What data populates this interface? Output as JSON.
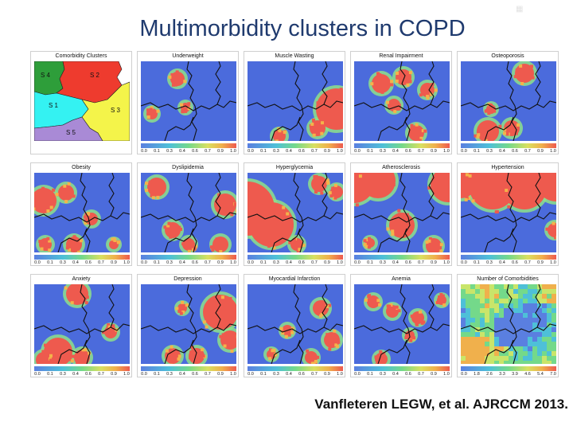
{
  "slide": {
    "title": "Multimorbidity clusters in COPD",
    "citation": "Vanfleteren LEGW, et al. AJRCCM 2013."
  },
  "colors": {
    "low": "#4b6bdc",
    "high": "#ee5a4e",
    "mid": "#8ee08a",
    "border": "#111111"
  },
  "chart_data": [
    {
      "type": "heatmap",
      "title": "Comorbidity Clusters",
      "variant": "clusters",
      "legend": [],
      "clusters": [
        {
          "label": "S 4",
          "color": "#2e9e3a"
        },
        {
          "label": "S 2",
          "color": "#ee3b2e"
        },
        {
          "label": "S 1",
          "color": "#34f2f2"
        },
        {
          "label": "S 3",
          "color": "#f4f44a"
        },
        {
          "label": "S 5",
          "color": "#a98ad6"
        }
      ]
    },
    {
      "type": "heatmap",
      "title": "Underweight",
      "variant": "blobs",
      "pattern": 0,
      "legend": [
        "0.0",
        "0.1",
        "0.3",
        "0.4",
        "0.6",
        "0.7",
        "0.9",
        "1.0"
      ],
      "range": [
        0,
        1
      ]
    },
    {
      "type": "heatmap",
      "title": "Muscle Wasting",
      "variant": "blobs",
      "pattern": 1,
      "legend": [
        "0.0",
        "0.1",
        "0.3",
        "0.4",
        "0.6",
        "0.7",
        "0.9",
        "1.0"
      ],
      "range": [
        0,
        1
      ]
    },
    {
      "type": "heatmap",
      "title": "Renal Impairment",
      "variant": "blobs",
      "pattern": 2,
      "legend": [
        "0.0",
        "0.1",
        "0.3",
        "0.4",
        "0.6",
        "0.7",
        "0.9",
        "1.0"
      ],
      "range": [
        0,
        1
      ]
    },
    {
      "type": "heatmap",
      "title": "Osteoporosis",
      "variant": "blobs",
      "pattern": 3,
      "legend": [
        "0.0",
        "0.1",
        "0.3",
        "0.4",
        "0.6",
        "0.7",
        "0.9",
        "1.0"
      ],
      "range": [
        0,
        1
      ]
    },
    {
      "type": "heatmap",
      "title": "Obesity",
      "variant": "blobs",
      "pattern": 4,
      "legend": [
        "0.0",
        "0.1",
        "0.3",
        "0.4",
        "0.6",
        "0.7",
        "0.9",
        "1.0"
      ],
      "range": [
        0,
        1
      ]
    },
    {
      "type": "heatmap",
      "title": "Dyslipidemia",
      "variant": "blobs",
      "pattern": 5,
      "legend": [
        "0.0",
        "0.1",
        "0.3",
        "0.4",
        "0.6",
        "0.7",
        "0.9",
        "1.0"
      ],
      "range": [
        0,
        1
      ]
    },
    {
      "type": "heatmap",
      "title": "Hyperglycemia",
      "variant": "blobs",
      "pattern": 6,
      "legend": [
        "0.0",
        "0.1",
        "0.3",
        "0.4",
        "0.6",
        "0.7",
        "0.9",
        "1.0"
      ],
      "range": [
        0,
        1
      ]
    },
    {
      "type": "heatmap",
      "title": "Atherosclerosis",
      "variant": "blobs",
      "pattern": 7,
      "legend": [
        "0.0",
        "0.1",
        "0.3",
        "0.4",
        "0.6",
        "0.7",
        "0.9",
        "1.0"
      ],
      "range": [
        0,
        1
      ]
    },
    {
      "type": "heatmap",
      "title": "Hypertension",
      "variant": "blobs",
      "pattern": 8,
      "legend": [
        "0.0",
        "0.1",
        "0.3",
        "0.4",
        "0.6",
        "0.7",
        "0.9",
        "1.0"
      ],
      "range": [
        0,
        1
      ]
    },
    {
      "type": "heatmap",
      "title": "Anxiety",
      "variant": "blobs",
      "pattern": 9,
      "legend": [
        "0.0",
        "0.1",
        "0.3",
        "0.4",
        "0.6",
        "0.7",
        "0.9",
        "1.0"
      ],
      "range": [
        0,
        1
      ]
    },
    {
      "type": "heatmap",
      "title": "Depression",
      "variant": "blobs",
      "pattern": 10,
      "legend": [
        "0.0",
        "0.1",
        "0.3",
        "0.4",
        "0.6",
        "0.7",
        "0.9",
        "1.0"
      ],
      "range": [
        0,
        1
      ]
    },
    {
      "type": "heatmap",
      "title": "Myocardial Infarction",
      "variant": "blobs",
      "pattern": 11,
      "legend": [
        "0.0",
        "0.1",
        "0.3",
        "0.4",
        "0.6",
        "0.7",
        "0.9",
        "1.0"
      ],
      "range": [
        0,
        1
      ]
    },
    {
      "type": "heatmap",
      "title": "Anemia",
      "variant": "blobs",
      "pattern": 12,
      "legend": [
        "0.0",
        "0.1",
        "0.3",
        "0.4",
        "0.6",
        "0.7",
        "0.9",
        "1.0"
      ],
      "range": [
        0,
        1
      ]
    },
    {
      "type": "heatmap",
      "title": "Number of Comorbidities",
      "variant": "gradient",
      "legend": [
        "0.0",
        "1.8",
        "2.6",
        "3.3",
        "3.9",
        "4.6",
        "5.4",
        "7.0"
      ],
      "range": [
        0,
        7
      ]
    }
  ]
}
